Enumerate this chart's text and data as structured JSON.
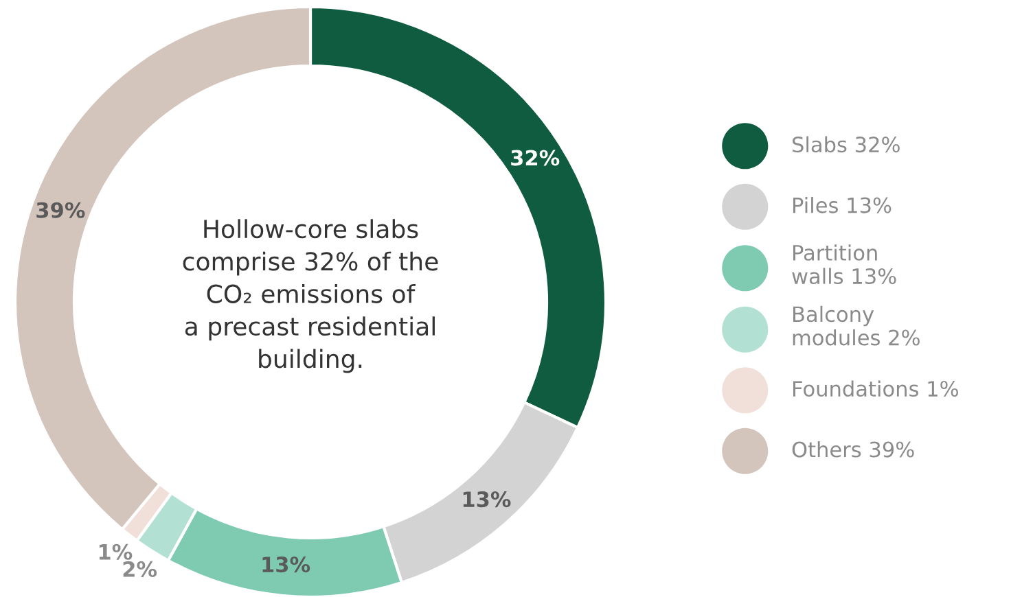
{
  "chart_data": {
    "type": "donut",
    "categories": [
      "Slabs 32%",
      "Piles 13%",
      "Partition\nwalls 13%",
      "Balcony\nmodules 2%",
      "Foundations 1%",
      "Others 39%"
    ],
    "values": [
      32,
      13,
      13,
      2,
      1,
      39
    ],
    "colors": [
      "#0f5c40",
      "#d3d3d3",
      "#7fcbb1",
      "#b2e0d3",
      "#f1e0da",
      "#d4c5bc"
    ],
    "value_labels": [
      "32%",
      "13%",
      "13%",
      "2%",
      "1%",
      "39%"
    ],
    "annotations": [
      "Hollow-core slabs\ncomprise 32% of the\nCO₂ emissions of\na precast residential\nbuilding."
    ],
    "legend": "right"
  }
}
